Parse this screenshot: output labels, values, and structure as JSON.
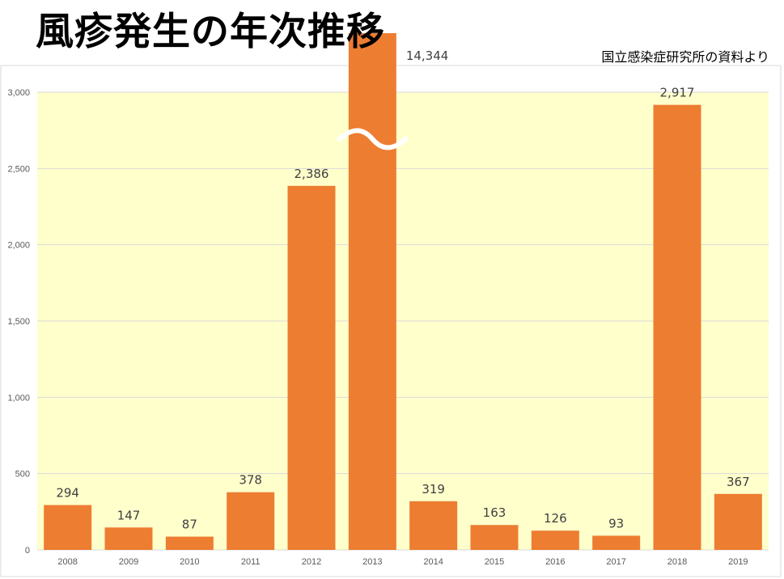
{
  "header": {
    "title": "風疹発生の年次推移",
    "source": "国立感染症研究所の資料より"
  },
  "colors": {
    "bar": "#ED7D31",
    "plot_background": "#FFFFCC",
    "gridline": "#D9D9D9",
    "break_mark": "#FFFFFF"
  },
  "chart_data": {
    "type": "bar",
    "title": "風疹発生の年次推移",
    "xlabel": "",
    "ylabel": "",
    "categories": [
      "2008",
      "2009",
      "2010",
      "2011",
      "2012",
      "2013",
      "2014",
      "2015",
      "2016",
      "2017",
      "2018",
      "2019"
    ],
    "values": [
      294,
      147,
      87,
      378,
      2386,
      14344,
      319,
      163,
      126,
      93,
      2917,
      367
    ],
    "data_labels": [
      "294",
      "147",
      "87",
      "378",
      "2,386",
      "14,344",
      "319",
      "163",
      "126",
      "93",
      "2,917",
      "367"
    ],
    "ylim": [
      0,
      3000
    ],
    "yticks": [
      0,
      500,
      1000,
      1500,
      2000,
      2500,
      3000
    ],
    "ytick_labels": [
      "0",
      "500",
      "1,000",
      "1,500",
      "2,000",
      "2,500",
      "3,000"
    ],
    "grid": true,
    "legend": "none",
    "axis_break": {
      "category": "2013",
      "mark": "wave"
    }
  }
}
